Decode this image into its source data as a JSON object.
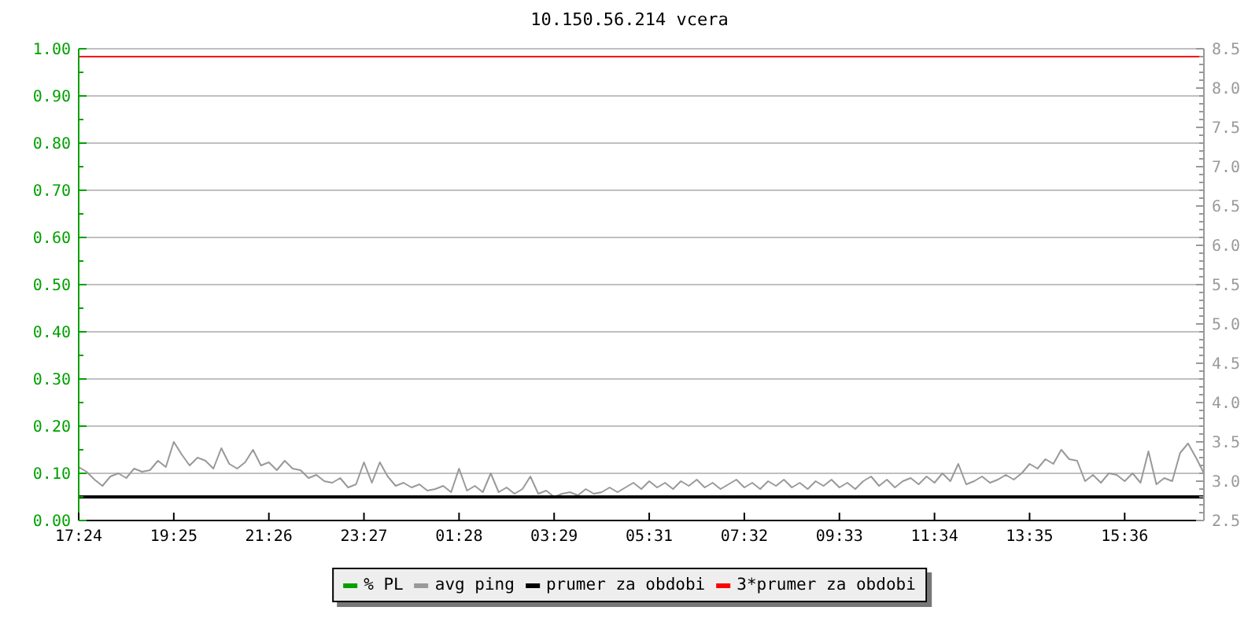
{
  "chart_data": {
    "type": "line",
    "title": "10.150.56.214 vcera",
    "categories": [
      "17:24",
      null,
      null,
      null,
      null,
      null,
      null,
      null,
      null,
      null,
      null,
      null,
      "19:25",
      null,
      null,
      null,
      null,
      null,
      null,
      null,
      null,
      null,
      null,
      null,
      "21:26",
      null,
      null,
      null,
      null,
      null,
      null,
      null,
      null,
      null,
      null,
      null,
      "23:27",
      null,
      null,
      null,
      null,
      null,
      null,
      null,
      null,
      null,
      null,
      null,
      "01:28",
      null,
      null,
      null,
      null,
      null,
      null,
      null,
      null,
      null,
      null,
      null,
      "03:29",
      null,
      null,
      null,
      null,
      null,
      null,
      null,
      null,
      null,
      null,
      null,
      "05:31",
      null,
      null,
      null,
      null,
      null,
      null,
      null,
      null,
      null,
      null,
      null,
      "07:32",
      null,
      null,
      null,
      null,
      null,
      null,
      null,
      null,
      null,
      null,
      null,
      "09:33",
      null,
      null,
      null,
      null,
      null,
      null,
      null,
      null,
      null,
      null,
      null,
      "11:34",
      null,
      null,
      null,
      null,
      null,
      null,
      null,
      null,
      null,
      null,
      null,
      "13:35",
      null,
      null,
      null,
      null,
      null,
      null,
      null,
      null,
      null,
      null,
      null,
      "15:36",
      null,
      null,
      null,
      null,
      null,
      null,
      null,
      null,
      null,
      null
    ],
    "ylim": [
      0,
      1
    ],
    "yticks": [
      {
        "value": 0,
        "label": "0.00"
      },
      {
        "value": 0.05,
        "label": null
      },
      {
        "value": 0.1,
        "label": "0.10"
      },
      {
        "value": 0.15,
        "label": null
      },
      {
        "value": 0.2,
        "label": "0.20"
      },
      {
        "value": 0.25,
        "label": null
      },
      {
        "value": 0.3,
        "label": "0.30"
      },
      {
        "value": 0.35,
        "label": null
      },
      {
        "value": 0.4,
        "label": "0.40"
      },
      {
        "value": 0.45,
        "label": null
      },
      {
        "value": 0.5,
        "label": "0.50"
      },
      {
        "value": 0.55,
        "label": null
      },
      {
        "value": 0.6,
        "label": "0.60"
      },
      {
        "value": 0.65,
        "label": null
      },
      {
        "value": 0.7,
        "label": "0.70"
      },
      {
        "value": 0.75,
        "label": null
      },
      {
        "value": 0.8,
        "label": "0.80"
      },
      {
        "value": 0.85,
        "label": null
      },
      {
        "value": 0.9,
        "label": "0.90"
      },
      {
        "value": 0.95,
        "label": null
      },
      {
        "value": 1,
        "label": "1.00"
      }
    ],
    "y2lim": [
      2.5,
      8.5
    ],
    "y2ticks": [
      2.5,
      {
        "value": 2.6,
        "label": null
      },
      {
        "value": 2.7,
        "label": null
      },
      {
        "value": 2.8,
        "label": null
      },
      {
        "value": 2.9,
        "label": null
      },
      {
        "value": 3,
        "label": "3.0"
      },
      {
        "value": 3.1,
        "label": null
      },
      {
        "value": 3.2,
        "label": null
      },
      {
        "value": 3.3,
        "label": null
      },
      {
        "value": 3.4,
        "label": null
      },
      3.5,
      {
        "value": 3.6,
        "label": null
      },
      {
        "value": 3.7,
        "label": null
      },
      {
        "value": 3.8,
        "label": null
      },
      {
        "value": 3.9,
        "label": null
      },
      {
        "value": 4,
        "label": "4.0"
      },
      {
        "value": 4.1,
        "label": null
      },
      {
        "value": 4.2,
        "label": null
      },
      {
        "value": 4.3,
        "label": null
      },
      {
        "value": 4.4,
        "label": null
      },
      4.5,
      {
        "value": 4.6,
        "label": null
      },
      {
        "value": 4.7,
        "label": null
      },
      {
        "value": 4.8,
        "label": null
      },
      {
        "value": 4.9,
        "label": null
      },
      {
        "value": 5,
        "label": "5.0"
      },
      {
        "value": 5.1,
        "label": null
      },
      {
        "value": 5.2,
        "label": null
      },
      {
        "value": 5.3,
        "label": null
      },
      {
        "value": 5.4,
        "label": null
      },
      5.5,
      {
        "value": 5.6,
        "label": null
      },
      {
        "value": 5.7,
        "label": null
      },
      {
        "value": 5.8,
        "label": null
      },
      {
        "value": 5.9,
        "label": null
      },
      {
        "value": 6,
        "label": "6.0"
      },
      {
        "value": 6.1,
        "label": null
      },
      {
        "value": 6.2,
        "label": null
      },
      {
        "value": 6.3,
        "label": null
      },
      {
        "value": 6.4,
        "label": null
      },
      6.5,
      {
        "value": 6.6,
        "label": null
      },
      {
        "value": 6.7,
        "label": null
      },
      {
        "value": 6.8,
        "label": null
      },
      {
        "value": 6.9,
        "label": null
      },
      {
        "value": 7,
        "label": "7.0"
      },
      {
        "value": 7.1,
        "label": null
      },
      {
        "value": 7.2,
        "label": null
      },
      {
        "value": 7.3,
        "label": null
      },
      {
        "value": 7.4,
        "label": null
      },
      7.5,
      {
        "value": 7.6,
        "label": null
      },
      {
        "value": 7.7,
        "label": null
      },
      {
        "value": 7.8,
        "label": null
      },
      {
        "value": 7.9,
        "label": null
      },
      {
        "value": 8,
        "label": "8.0"
      },
      {
        "value": 8.1,
        "label": null
      },
      {
        "value": 8.2,
        "label": null
      },
      {
        "value": 8.3,
        "label": null
      },
      {
        "value": 8.4,
        "label": null
      },
      8.5
    ],
    "grid": "y",
    "legend": "bottom",
    "series": [
      {
        "name": "% PL",
        "color": "#00a000",
        "values": [
          null,
          null,
          null,
          null,
          null,
          null,
          null,
          null,
          null,
          null,
          null,
          null,
          null,
          null,
          null,
          null,
          null,
          null,
          null,
          null,
          null,
          null,
          null,
          null,
          null,
          null,
          null,
          null,
          null,
          null,
          null,
          null,
          null,
          null,
          null,
          null,
          null,
          null,
          null,
          null,
          null,
          null,
          null,
          null,
          null,
          null,
          null,
          null,
          null,
          null,
          null,
          null,
          null,
          null,
          null,
          null,
          null,
          null,
          null,
          null,
          null,
          null,
          null,
          null,
          null,
          null,
          null,
          null,
          null,
          null,
          null,
          null,
          null,
          null,
          null,
          null,
          null,
          null,
          null,
          null,
          null,
          null,
          null,
          null,
          null,
          null,
          null,
          null,
          null,
          null,
          null,
          null,
          null,
          null,
          null,
          null,
          null,
          null,
          null,
          null,
          null,
          null,
          null,
          null,
          null,
          null,
          null,
          null,
          null,
          null,
          null,
          null,
          null,
          null,
          null,
          null,
          null,
          null,
          null,
          null,
          null,
          null,
          null,
          null,
          null,
          null,
          null,
          null,
          null,
          null,
          null,
          null,
          null,
          null,
          null,
          null,
          null,
          null,
          null,
          null,
          null,
          null,
          null
        ]
      },
      {
        "name": "avg ping",
        "color": "#999999",
        "axis": "y2",
        "values": [
          3.18,
          3.12,
          3.02,
          2.94,
          3.06,
          3.1,
          3.04,
          3.16,
          3.12,
          3.14,
          3.26,
          3.18,
          3.5,
          3.34,
          3.2,
          3.3,
          3.26,
          3.16,
          3.42,
          3.22,
          3.16,
          3.24,
          3.4,
          3.2,
          3.24,
          3.14,
          3.26,
          3.16,
          3.14,
          3.04,
          3.08,
          3.0,
          2.98,
          3.04,
          2.92,
          2.96,
          3.24,
          2.98,
          3.24,
          3.06,
          2.94,
          2.98,
          2.92,
          2.96,
          2.88,
          2.9,
          2.94,
          2.86,
          3.16,
          2.88,
          2.94,
          2.86,
          3.1,
          2.86,
          2.92,
          2.84,
          2.9,
          3.06,
          2.84,
          2.88,
          2.8,
          2.84,
          2.86,
          2.82,
          2.9,
          2.84,
          2.86,
          2.92,
          2.86,
          2.92,
          2.98,
          2.9,
          3.0,
          2.92,
          2.98,
          2.9,
          3.0,
          2.94,
          3.02,
          2.92,
          2.98,
          2.9,
          2.96,
          3.02,
          2.92,
          2.98,
          2.9,
          3.0,
          2.94,
          3.02,
          2.92,
          2.98,
          2.9,
          3.0,
          2.94,
          3.02,
          2.92,
          2.98,
          2.9,
          3.0,
          3.06,
          2.94,
          3.02,
          2.92,
          3.0,
          3.04,
          2.96,
          3.06,
          2.98,
          3.1,
          3.0,
          3.22,
          2.96,
          3.0,
          3.06,
          2.98,
          3.02,
          3.08,
          3.02,
          3.1,
          3.22,
          3.16,
          3.28,
          3.22,
          3.4,
          3.28,
          3.26,
          3.0,
          3.08,
          2.98,
          3.1,
          3.08,
          3.0,
          3.1,
          2.98,
          3.38,
          2.96,
          3.04,
          3.0,
          3.36,
          3.48,
          3.3,
          3.1
        ]
      }
    ],
    "ref_lines": [
      {
        "axis": "y2",
        "value": 2.8,
        "label": "prumer za obdobi",
        "color": "#000000"
      },
      {
        "axis": "y2",
        "value": 8.4,
        "label": "3*prumer za obdobi",
        "color": "#ff0000"
      }
    ]
  }
}
